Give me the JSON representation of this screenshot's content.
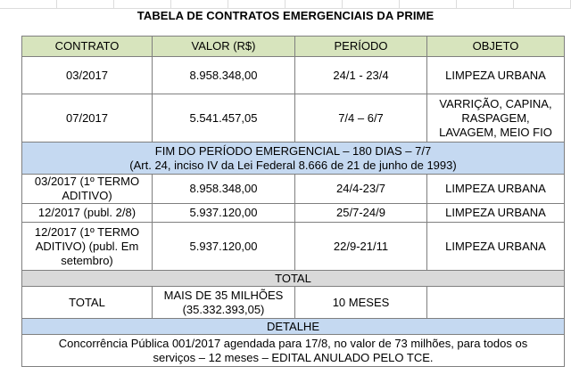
{
  "title": "TABELA DE CONTRATOS EMERGENCIAIS DA PRIME",
  "headers": [
    "CONTRATO",
    "VALOR (R$)",
    "PERÍODO",
    "OBJETO"
  ],
  "rows_before": [
    {
      "contrato": "03/2017",
      "valor": "8.958.348,00",
      "periodo": "24/1 - 23/4",
      "objeto": "LIMPEZA URBANA"
    },
    {
      "contrato": "07/2017",
      "valor": "5.541.457,05",
      "periodo": "7/4 – 6/7",
      "objeto": "VARRIÇÃO, CAPINA, RASPAGEM, LAVAGEM, MEIO FIO"
    }
  ],
  "band": {
    "line1": "FIM DO PERÍODO EMERGENCIAL – 180 DIAS – 7/7",
    "line2": "(Art. 24, inciso IV da Lei Federal 8.666 de 21 de junho de 1993)"
  },
  "rows_after": [
    {
      "contrato": "03/2017 (1º TERMO ADITIVO)",
      "valor": "8.958.348,00",
      "periodo": "24/4-23/7",
      "objeto": "LIMPEZA URBANA"
    },
    {
      "contrato": "12/2017 (publ. 2/8)",
      "valor": "5.937.120,00",
      "periodo": "25/7-24/9",
      "objeto": "LIMPEZA URBANA"
    },
    {
      "contrato": "12/2017 (1º TERMO ADITIVO) (publ. Em setembro)",
      "valor": "5.937.120,00",
      "periodo": "22/9-21/11",
      "objeto": "LIMPEZA URBANA"
    }
  ],
  "total": {
    "section_label": "TOTAL",
    "label": "TOTAL",
    "valor_line1": "MAIS DE 35 MILHÕES",
    "valor_line2": "(35.332.393,05)",
    "periodo": "10 MESES",
    "objeto": ""
  },
  "detalhe": {
    "section_label": "DETALHE",
    "line1": "Concorrência Pública 001/2017 agendada para 17/8, no valor de 73 milhões, para todos os",
    "line2": "serviços – 12 meses – EDITAL ANULADO PELO TCE."
  }
}
